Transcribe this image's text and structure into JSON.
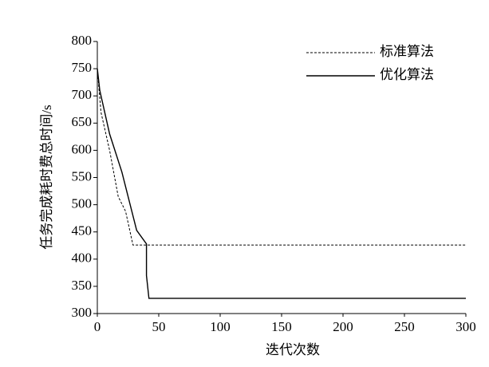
{
  "chart_data": {
    "type": "line",
    "xlabel": "迭代次数",
    "ylabel": "任务完成耗时费总时间/s",
    "xlim": [
      0,
      300
    ],
    "xticks": [
      0,
      50,
      100,
      150,
      200,
      250,
      300
    ],
    "ylim": [
      300,
      800
    ],
    "yticks": [
      300,
      350,
      400,
      450,
      500,
      550,
      600,
      650,
      700,
      750,
      800
    ],
    "legend": "upper right",
    "series": [
      {
        "name": "标准算法",
        "color": "#000000",
        "dash": true,
        "x": [
          0,
          3,
          10,
          17,
          23,
          29,
          300
        ],
        "values": [
          750,
          670,
          600,
          515,
          488,
          426,
          426
        ]
      },
      {
        "name": "优化算法",
        "color": "#000000",
        "dash": false,
        "x": [
          0,
          2,
          10,
          20,
          32,
          40,
          40,
          42,
          300
        ],
        "values": [
          750,
          710,
          630,
          560,
          453,
          428,
          370,
          328,
          328
        ]
      }
    ]
  }
}
